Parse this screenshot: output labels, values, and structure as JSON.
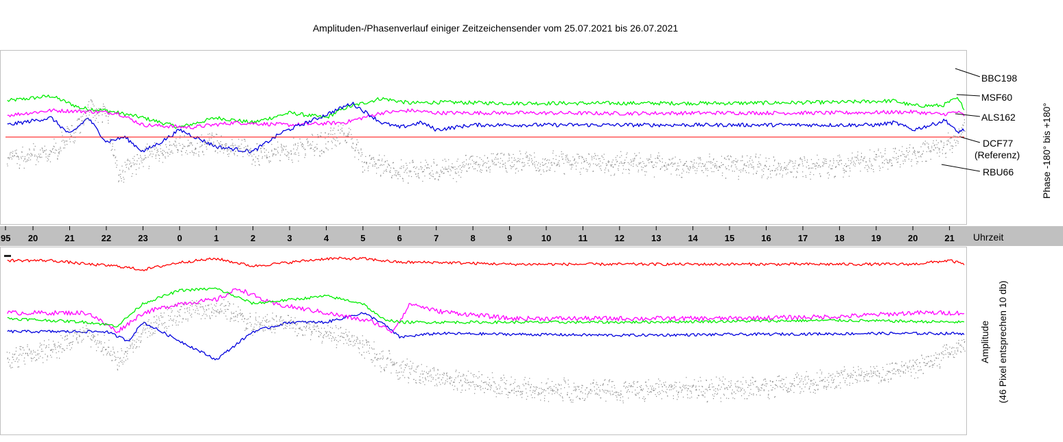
{
  "chart_data": {
    "type": "line",
    "title": "Amplituden-/Phasenverlauf einiger Zeitzeichensender vom 25.07.2021 bis 26.07.2021",
    "x_axis": {
      "label": "Uhrzeit",
      "ticks": [
        "95",
        "20",
        "21",
        "22",
        "23",
        "0",
        "1",
        "2",
        "3",
        "4",
        "5",
        "6",
        "7",
        "8",
        "9",
        "10",
        "11",
        "12",
        "13",
        "14",
        "15",
        "16",
        "17",
        "18",
        "19",
        "20",
        "21"
      ],
      "range": [
        19.25,
        45.4
      ]
    },
    "phase_panel": {
      "ylabel": "Phase -180° bis +180°",
      "ylim": [
        -180,
        180
      ],
      "reference_line_deg": 0,
      "reference_color": "#ff0000",
      "series": [
        {
          "name": "BBC198",
          "color": "#00ee00",
          "keys": [
            [
              19.3,
              75
            ],
            [
              20.5,
              85
            ],
            [
              21.3,
              60
            ],
            [
              22,
              55
            ],
            [
              23,
              40
            ],
            [
              24,
              20
            ],
            [
              25,
              40
            ],
            [
              26,
              30
            ],
            [
              27,
              50
            ],
            [
              28,
              40
            ],
            [
              28.5,
              60
            ],
            [
              29.5,
              80
            ],
            [
              30.3,
              70
            ],
            [
              31,
              72
            ],
            [
              33,
              70
            ],
            [
              36,
              70
            ],
            [
              39,
              70
            ],
            [
              42,
              72
            ],
            [
              43.5,
              75
            ],
            [
              44,
              65
            ],
            [
              44.8,
              65
            ],
            [
              45.2,
              80
            ],
            [
              45.4,
              60
            ]
          ]
        },
        {
          "name": "MSF60",
          "color": "#ff00ff",
          "keys": [
            [
              19.3,
              45
            ],
            [
              20.5,
              55
            ],
            [
              21.5,
              53
            ],
            [
              22.3,
              50
            ],
            [
              23,
              25
            ],
            [
              24.3,
              20
            ],
            [
              25.5,
              30
            ],
            [
              27,
              25
            ],
            [
              28.5,
              30
            ],
            [
              29.5,
              50
            ],
            [
              30.3,
              55
            ],
            [
              31,
              50
            ],
            [
              33,
              50
            ],
            [
              36,
              49
            ],
            [
              39,
              50
            ],
            [
              42,
              50
            ],
            [
              44,
              52
            ],
            [
              44.8,
              47
            ],
            [
              45.2,
              52
            ],
            [
              45.4,
              45
            ]
          ]
        },
        {
          "name": "ALS162",
          "color": "#0000dd",
          "keys": [
            [
              19.3,
              25
            ],
            [
              20.5,
              40
            ],
            [
              21,
              5
            ],
            [
              21.5,
              40
            ],
            [
              22,
              -10
            ],
            [
              22.5,
              0
            ],
            [
              23,
              -30
            ],
            [
              23.5,
              -10
            ],
            [
              24,
              15
            ],
            [
              25,
              -20
            ],
            [
              26,
              -30
            ],
            [
              26.8,
              10
            ],
            [
              27.8,
              40
            ],
            [
              28.7,
              70
            ],
            [
              29.5,
              30
            ],
            [
              30,
              20
            ],
            [
              30.6,
              30
            ],
            [
              31,
              15
            ],
            [
              32,
              25
            ],
            [
              34,
              25
            ],
            [
              36,
              25
            ],
            [
              38,
              25
            ],
            [
              43,
              25
            ],
            [
              43.5,
              30
            ],
            [
              44,
              15
            ],
            [
              44.5,
              25
            ],
            [
              44.9,
              35
            ],
            [
              45.2,
              10
            ],
            [
              45.4,
              15
            ]
          ]
        },
        {
          "name": "DCF77 (Referenz)",
          "color": "#ff0000",
          "keys": [
            [
              19.25,
              0
            ],
            [
              45.4,
              0
            ]
          ]
        },
        {
          "name": "RBU66",
          "color": "#888888",
          "keys": [
            [
              19.3,
              -50
            ],
            [
              20.5,
              -30
            ],
            [
              21,
              0
            ],
            [
              21.5,
              60
            ],
            [
              22,
              50
            ],
            [
              22.3,
              -80
            ],
            [
              23,
              -40
            ],
            [
              24,
              -20
            ],
            [
              25,
              -10
            ],
            [
              26.3,
              -40
            ],
            [
              27.5,
              -20
            ],
            [
              28,
              -10
            ],
            [
              28.5,
              10
            ],
            [
              29,
              -50
            ],
            [
              30,
              -70
            ],
            [
              31,
              -70
            ],
            [
              33,
              -50
            ],
            [
              36,
              -55
            ],
            [
              39,
              -60
            ],
            [
              42,
              -60
            ],
            [
              44,
              -40
            ],
            [
              45.2,
              -10
            ],
            [
              45.4,
              20
            ]
          ]
        }
      ]
    },
    "amplitude_panel": {
      "ylabel": "Amplitude",
      "ylabel2": "(46 Pixel entsprechen 10 db)",
      "ylim": [
        0,
        100
      ],
      "series": [
        {
          "name": "DCF77 (Referenz)",
          "color": "#ff0000",
          "keys": [
            [
              19.3,
              93
            ],
            [
              20.5,
              93
            ],
            [
              21.5,
              91
            ],
            [
              22.3,
              90
            ],
            [
              23,
              88
            ],
            [
              24,
              92
            ],
            [
              25,
              94
            ],
            [
              26,
              90
            ],
            [
              27,
              92
            ],
            [
              28,
              94
            ],
            [
              29,
              94
            ],
            [
              30,
              92
            ],
            [
              31,
              92
            ],
            [
              33,
              91
            ],
            [
              36,
              91
            ],
            [
              39,
              91
            ],
            [
              42,
              91
            ],
            [
              44,
              91
            ],
            [
              45,
              93
            ],
            [
              45.4,
              91
            ]
          ]
        },
        {
          "name": "ALS162",
          "color": "#0000dd",
          "keys": [
            [
              19.3,
              55
            ],
            [
              21,
              55
            ],
            [
              22,
              55
            ],
            [
              22.6,
              50
            ],
            [
              23,
              60
            ],
            [
              24,
              50
            ],
            [
              25,
              40
            ],
            [
              26,
              55
            ],
            [
              27,
              60
            ],
            [
              28,
              60
            ],
            [
              29,
              65
            ],
            [
              29.5,
              60
            ],
            [
              30,
              52
            ],
            [
              31,
              54
            ],
            [
              36,
              53
            ],
            [
              43,
              54
            ],
            [
              45.4,
              54
            ]
          ]
        },
        {
          "name": "MSF60",
          "color": "#ff00ff",
          "keys": [
            [
              19.3,
              65
            ],
            [
              21.5,
              65
            ],
            [
              22.3,
              55
            ],
            [
              23,
              65
            ],
            [
              24,
              70
            ],
            [
              25,
              72
            ],
            [
              25.6,
              78
            ],
            [
              26.5,
              70
            ],
            [
              28,
              65
            ],
            [
              29.3,
              60
            ],
            [
              29.8,
              55
            ],
            [
              30.3,
              70
            ],
            [
              31,
              66
            ],
            [
              33,
              62
            ],
            [
              36,
              62
            ],
            [
              39,
              62
            ],
            [
              42,
              63
            ],
            [
              44,
              65
            ],
            [
              45.4,
              65
            ]
          ]
        },
        {
          "name": "BBC198",
          "color": "#00ee00",
          "keys": [
            [
              19.3,
              62
            ],
            [
              21.5,
              60
            ],
            [
              22.3,
              58
            ],
            [
              23,
              70
            ],
            [
              24,
              77
            ],
            [
              25,
              78
            ],
            [
              26,
              70
            ],
            [
              27,
              72
            ],
            [
              28,
              74
            ],
            [
              29,
              70
            ],
            [
              29.5,
              62
            ],
            [
              30,
              60
            ],
            [
              31,
              60
            ],
            [
              36,
              60
            ],
            [
              42,
              61
            ],
            [
              45.4,
              60
            ]
          ]
        },
        {
          "name": "RBU66",
          "color": "#888888",
          "keys": [
            [
              19.3,
              40
            ],
            [
              20.5,
              45
            ],
            [
              21.5,
              55
            ],
            [
              22.3,
              40
            ],
            [
              23,
              55
            ],
            [
              24,
              65
            ],
            [
              25,
              68
            ],
            [
              26,
              60
            ],
            [
              27,
              60
            ],
            [
              27.8,
              55
            ],
            [
              28.7,
              52
            ],
            [
              29.5,
              40
            ],
            [
              30.5,
              32
            ],
            [
              32,
              28
            ],
            [
              34,
              24
            ],
            [
              36,
              24
            ],
            [
              38,
              24
            ],
            [
              40,
              25
            ],
            [
              42,
              30
            ],
            [
              44,
              35
            ],
            [
              45.4,
              48
            ]
          ]
        }
      ]
    },
    "legend": [
      "BBC198",
      "MSF60",
      "ALS162",
      "DCF77",
      "(Referenz)",
      "RBU66"
    ]
  }
}
